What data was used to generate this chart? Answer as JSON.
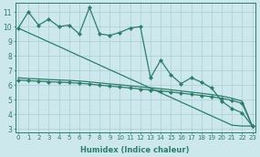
{
  "xlabel": "Humidex (Indice chaleur)",
  "x_values": [
    0,
    1,
    2,
    3,
    4,
    5,
    6,
    7,
    8,
    9,
    10,
    11,
    12,
    13,
    14,
    15,
    16,
    17,
    18,
    19,
    20,
    21,
    22,
    23
  ],
  "line_jagged": [
    9.9,
    11.0,
    10.1,
    10.5,
    10.0,
    10.1,
    9.5,
    11.3,
    9.5,
    9.4,
    9.6,
    9.9,
    10.0,
    6.5,
    7.7,
    6.7,
    6.1,
    6.5,
    6.2,
    5.8,
    4.9,
    4.4,
    4.1,
    3.2
  ],
  "line_diagonal": [
    9.9,
    9.58,
    9.27,
    8.95,
    8.64,
    8.32,
    8.0,
    7.69,
    7.37,
    7.05,
    6.74,
    6.42,
    6.11,
    5.79,
    5.47,
    5.16,
    4.84,
    4.53,
    4.21,
    3.89,
    3.58,
    3.26,
    3.2,
    3.2
  ],
  "line_flat_upper": [
    6.5,
    6.45,
    6.42,
    6.38,
    6.35,
    6.32,
    6.28,
    6.22,
    6.15,
    6.08,
    6.02,
    5.95,
    5.88,
    5.82,
    5.75,
    5.68,
    5.6,
    5.52,
    5.44,
    5.35,
    5.25,
    5.1,
    4.9,
    3.2
  ],
  "line_flat_lower": [
    6.35,
    6.3,
    6.27,
    6.23,
    6.2,
    6.17,
    6.13,
    6.07,
    6.0,
    5.93,
    5.87,
    5.8,
    5.73,
    5.67,
    5.6,
    5.53,
    5.45,
    5.37,
    5.29,
    5.2,
    5.1,
    4.95,
    4.75,
    3.2
  ],
  "line_color": "#2e7d6b",
  "bg_color": "#cce8ec",
  "grid_color": "#aacdd4",
  "ylim": [
    2.8,
    11.6
  ],
  "xlim": [
    -0.3,
    23.3
  ],
  "yticks": [
    3,
    4,
    5,
    6,
    7,
    8,
    9,
    10,
    11
  ],
  "xtick_fontsize": 5.0,
  "ytick_fontsize": 5.5,
  "xlabel_fontsize": 6.0
}
